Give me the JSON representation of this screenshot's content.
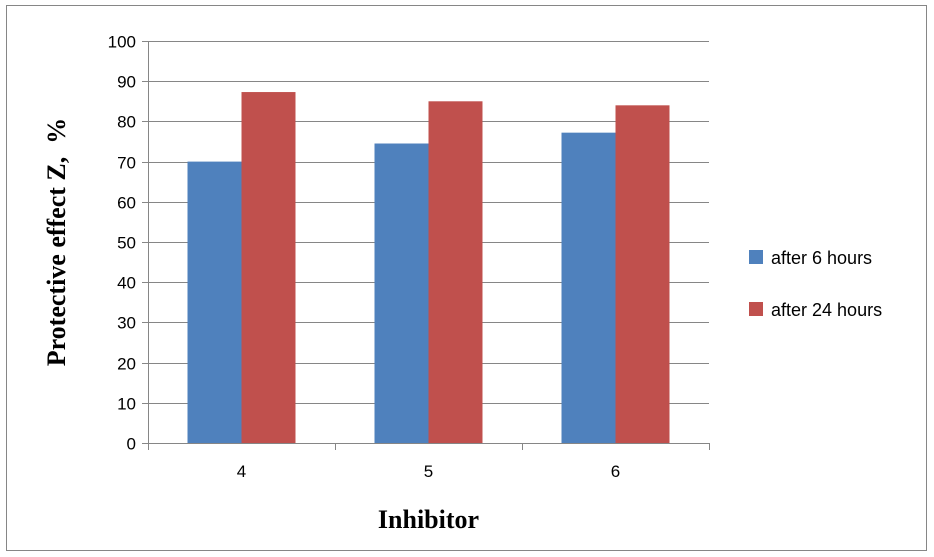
{
  "chart_data": {
    "type": "bar",
    "categories": [
      "4",
      "5",
      "6"
    ],
    "series": [
      {
        "name": "after 6 hours",
        "values": [
          70,
          74.5,
          77.2
        ],
        "color": "#4F81BD"
      },
      {
        "name": "after 24 hours",
        "values": [
          87.3,
          85,
          84
        ],
        "color": "#C0504D"
      }
    ],
    "xlabel": "Inhibitor",
    "ylabel": "Protective effect Z,  %",
    "ylim": [
      0,
      100
    ],
    "yticks": [
      "0",
      "10",
      "20",
      "30",
      "40",
      "50",
      "60",
      "70",
      "80",
      "90",
      "100"
    ],
    "grid": true,
    "legend_position": "right"
  }
}
